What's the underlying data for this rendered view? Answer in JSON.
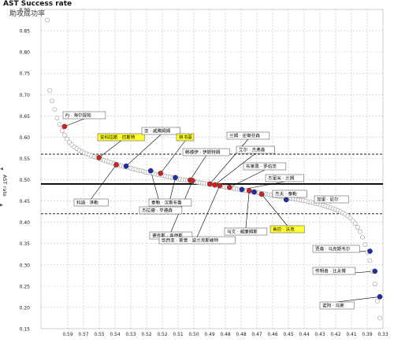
{
  "title": "AST Success rate",
  "subtitle": "助攻成功率",
  "chart_data": {
    "type": "scatter",
    "title": "AST Success rate",
    "subtitle": "助攻成功率",
    "ylabel": "AST rate",
    "ylim": [
      0.15,
      0.9
    ],
    "y_ticks": [
      0.15,
      0.2,
      0.25,
      0.3,
      0.35,
      0.4,
      0.45,
      0.5,
      0.55,
      0.6,
      0.65,
      0.7,
      0.75,
      0.8,
      0.85,
      0.9
    ],
    "x_tick_labels": [
      "0.59",
      "0.57",
      "0.55",
      "0.54",
      "0.53",
      "0.52",
      "0.52",
      "0.51",
      "0.50",
      "0.49",
      "0.48",
      "0.48",
      "0.47",
      "0.46",
      "0.45",
      "0.44",
      "0.43",
      "0.42",
      "0.41",
      "0.39",
      "0.33"
    ],
    "grid": true,
    "reference_lines": {
      "mean": 0.49,
      "upper": 0.56,
      "lower": 0.42
    },
    "colors": {
      "highlight_red": "#d42020",
      "highlight_blue": "#1c2fa8",
      "other": "#ffffff",
      "callout_yellow": "#ffff33"
    },
    "background_values": [
      0.875,
      0.71,
      0.685,
      0.665,
      0.645,
      0.63,
      0.615,
      0.605,
      0.596,
      0.588,
      0.582,
      0.577,
      0.573,
      0.569,
      0.566,
      0.563,
      0.561,
      0.559,
      0.556,
      0.554,
      0.552,
      0.55,
      0.548,
      0.546,
      0.544,
      0.542,
      0.54,
      0.538,
      0.537,
      0.535,
      0.533,
      0.531,
      0.53,
      0.528,
      0.527,
      0.525,
      0.524,
      0.522,
      0.521,
      0.52,
      0.518,
      0.517,
      0.516,
      0.515,
      0.513,
      0.512,
      0.511,
      0.51,
      0.508,
      0.507,
      0.506,
      0.505,
      0.503,
      0.502,
      0.501,
      0.5,
      0.499,
      0.498,
      0.497,
      0.496,
      0.495,
      0.494,
      0.493,
      0.492,
      0.491,
      0.49,
      0.489,
      0.488,
      0.487,
      0.486,
      0.485,
      0.484,
      0.483,
      0.482,
      0.481,
      0.48,
      0.479,
      0.478,
      0.477,
      0.476,
      0.475,
      0.474,
      0.473,
      0.472,
      0.471,
      0.47,
      0.469,
      0.468,
      0.467,
      0.466,
      0.465,
      0.464,
      0.463,
      0.462,
      0.461,
      0.46,
      0.459,
      0.458,
      0.457,
      0.456,
      0.455,
      0.454,
      0.453,
      0.452,
      0.451,
      0.45,
      0.448,
      0.447,
      0.446,
      0.444,
      0.443,
      0.441,
      0.44,
      0.438,
      0.436,
      0.434,
      0.432,
      0.43,
      0.428,
      0.425,
      0.422,
      0.419,
      0.415,
      0.41,
      0.404,
      0.397,
      0.388,
      0.378,
      0.365,
      0.348,
      0.33,
      0.31,
      0.285,
      0.255,
      0.215,
      0.175
    ],
    "highlighted_points": [
      {
        "name": "PJ · 海尔提帕",
        "rank": 7,
        "value": 0.625,
        "color": "red",
        "yellow": false
      },
      {
        "name": "安科拉斯 · 巴斯特",
        "rank": 21,
        "value": 0.552,
        "color": "red",
        "yellow": true
      },
      {
        "name": "科迪 · 泽勒",
        "rank": 28,
        "value": 0.535,
        "color": "red",
        "yellow": false
      },
      {
        "name": "亚 · 威腾姆姆",
        "rank": 32,
        "value": 0.532,
        "color": "blue",
        "yellow": false
      },
      {
        "name": "杰拉德 · 亨德森",
        "rank": 42,
        "value": 0.521,
        "color": "blue",
        "yellow": false
      },
      {
        "name": "林书豪",
        "rank": 46,
        "value": 0.515,
        "color": "red",
        "yellow": true
      },
      {
        "name": "泰勒 · 汉斯布鲁",
        "rank": 52,
        "value": 0.505,
        "color": "blue",
        "yellow": false
      },
      {
        "name": "韩德伊 · 伊斯特姆",
        "rank": 58,
        "value": 0.499,
        "color": "red",
        "yellow": false
      },
      {
        "name": "德克斯 · 盖伊斯",
        "rank": 59,
        "value": 0.498,
        "color": "red",
        "yellow": false
      },
      {
        "name": "兰姆 · 史蒂芬森",
        "rank": 66,
        "value": 0.49,
        "color": "red",
        "yellow": false
      },
      {
        "name": "艾尔 · 杰弗森",
        "rank": 68,
        "value": 0.488,
        "color": "red",
        "yellow": false
      },
      {
        "name": "凯西亚 · 斯普 · 波兰克斯颖特",
        "rank": 70,
        "value": 0.486,
        "color": "red",
        "yellow": false
      },
      {
        "name": "布莱恩 · 罗伯茨",
        "rank": 74,
        "value": 0.482,
        "color": "red",
        "yellow": false
      },
      {
        "name": "杰里米 · 兰姆",
        "rank": 79,
        "value": 0.477,
        "color": "blue",
        "yellow": false
      },
      {
        "name": "马文 · 威廉姆斯",
        "rank": 82,
        "value": 0.474,
        "color": "red",
        "yellow": false
      },
      {
        "name": "杰夫 · 泰勒",
        "rank": 84,
        "value": 0.471,
        "color": "blue",
        "yellow": false
      },
      {
        "name": "肯巴 · 沃克",
        "rank": 87,
        "value": 0.466,
        "color": "red",
        "yellow": true
      },
      {
        "name": "加里 · 尼尔",
        "rank": 97,
        "value": 0.453,
        "color": "blue",
        "yellow": false
      },
      {
        "name": "贾森 · 马克斯韦尔",
        "rank": 131,
        "value": 0.332,
        "color": "blue",
        "yellow": false
      },
      {
        "name": "传明奇 · 比永博",
        "rank": 133,
        "value": 0.285,
        "color": "blue",
        "yellow": false
      },
      {
        "name": "诺阿 · 冯莱",
        "rank": 135,
        "value": 0.225,
        "color": "blue",
        "yellow": false
      }
    ]
  }
}
